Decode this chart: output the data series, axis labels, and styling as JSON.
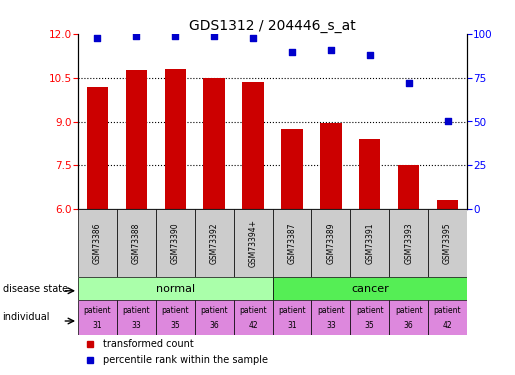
{
  "title": "GDS1312 / 204446_s_at",
  "samples": [
    "GSM73386",
    "GSM73388",
    "GSM73390",
    "GSM73392",
    "GSM73394+",
    "GSM73387",
    "GSM73389",
    "GSM73391",
    "GSM73393",
    "GSM73395"
  ],
  "transformed_count": [
    10.2,
    10.75,
    10.8,
    10.5,
    10.35,
    8.75,
    8.95,
    8.4,
    7.5,
    6.3
  ],
  "percentile_rank": [
    98,
    99,
    99,
    99,
    98,
    90,
    91,
    88,
    72,
    50
  ],
  "ylim_left": [
    6,
    12
  ],
  "ylim_right": [
    0,
    100
  ],
  "yticks_left": [
    6,
    7.5,
    9,
    10.5,
    12
  ],
  "yticks_right": [
    0,
    25,
    50,
    75,
    100
  ],
  "bar_color": "#cc0000",
  "scatter_color": "#0000cc",
  "normal_color": "#aaffaa",
  "cancer_color": "#55ee55",
  "individual_color": "#dd88dd",
  "sample_bg_color": "#cccccc",
  "normal_label": "normal",
  "cancer_label": "cancer",
  "legend_bar_label": "transformed count",
  "legend_scatter_label": "percentile rank within the sample",
  "disease_state_label": "disease state",
  "individual_label": "individual",
  "individual": [
    [
      "patient",
      "31"
    ],
    [
      "patient",
      "33"
    ],
    [
      "patient",
      "35"
    ],
    [
      "patient",
      "36"
    ],
    [
      "patient",
      "42"
    ],
    [
      "patient",
      "31"
    ],
    [
      "patient",
      "33"
    ],
    [
      "patient",
      "35"
    ],
    [
      "patient",
      "36"
    ],
    [
      "patient",
      "42"
    ]
  ]
}
